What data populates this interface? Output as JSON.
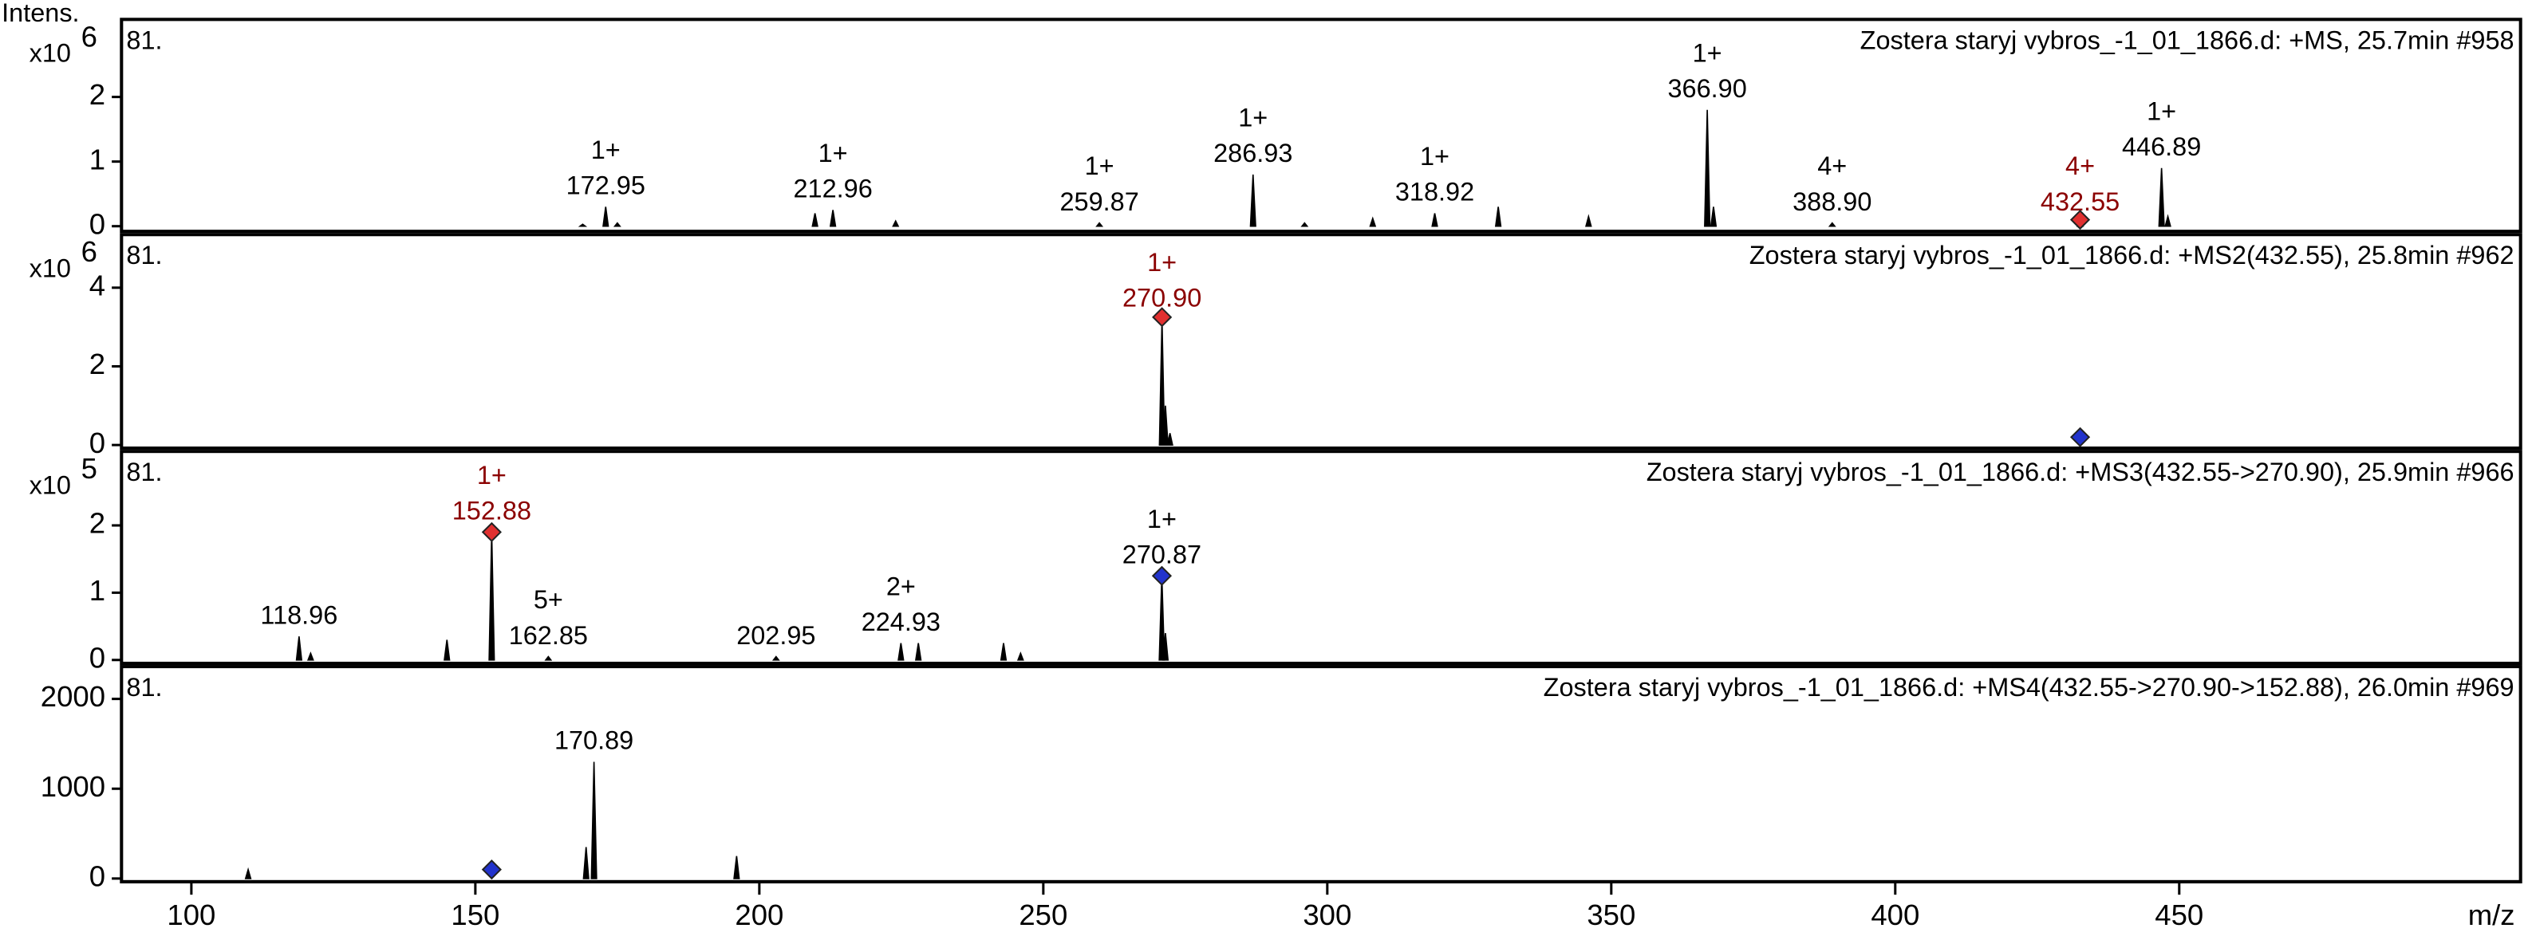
{
  "chart_data": [
    {
      "type": "bar",
      "title": "Zostera staryj vybros_-1_01_1866.d: +MS, 25.7min #958",
      "scan_label": "81.",
      "ylabel": "Intens.",
      "y_multiplier": "x10",
      "y_exponent": "6",
      "xlim": [
        87.7,
        510.1
      ],
      "ylim": [
        -0.08,
        3.2
      ],
      "yticks": [
        0,
        1,
        2
      ],
      "color": "#000000",
      "x": [
        172.95,
        212.96,
        259.87,
        286.93,
        318.92,
        366.9,
        388.9,
        432.55,
        446.89,
        168.9,
        175.0,
        209.8,
        224.0,
        296.0,
        308.0,
        330.1,
        346.0,
        368.0,
        448.0
      ],
      "values": [
        0.3,
        0.25,
        0.05,
        0.8,
        0.2,
        1.8,
        0.05,
        0.05,
        0.9,
        0.03,
        0.05,
        0.2,
        0.08,
        0.05,
        0.12,
        0.3,
        0.15,
        0.3,
        0.15
      ],
      "charges": [
        "1+",
        "1+",
        "1+",
        "1+",
        "1+",
        "1+",
        "4+",
        "4+",
        "1+",
        null,
        null,
        null,
        null,
        null,
        null,
        null,
        null,
        null,
        null
      ],
      "x_labels": [
        "172.95",
        "212.96",
        "259.87",
        "286.93",
        "318.92",
        "366.90",
        "388.90",
        "432.55",
        "446.89",
        null,
        null,
        null,
        null,
        null,
        null,
        null,
        null,
        null,
        null
      ],
      "label_colors": [
        "#000000",
        "#000000",
        "#000000",
        "#000000",
        "#000000",
        "#000000",
        "#000000",
        "#8b0000",
        "#000000",
        null,
        null,
        null,
        null,
        null,
        null,
        null,
        null,
        null,
        null
      ],
      "markers": [
        {
          "x": 432.55,
          "y": 0.1,
          "color": "#e03030"
        }
      ]
    },
    {
      "type": "bar",
      "title": "Zostera staryj vybros_-1_01_1866.d: +MS2(432.55), 25.8min #962",
      "scan_label": "81.",
      "y_multiplier": "x10",
      "y_exponent": "6",
      "xlim": [
        87.7,
        510.1
      ],
      "ylim": [
        -0.08,
        5.35
      ],
      "yticks": [
        0,
        2,
        4
      ],
      "color": "#000000",
      "x": [
        270.9,
        271.5,
        272.3
      ],
      "values": [
        3.2,
        1.0,
        0.3
      ],
      "charges": [
        "1+",
        null,
        null
      ],
      "x_labels": [
        "270.90",
        null,
        null
      ],
      "label_colors": [
        "#8b0000",
        null,
        null
      ],
      "markers": [
        {
          "x": 270.9,
          "y": 3.25,
          "color": "#e03030"
        },
        {
          "x": 432.55,
          "y": 0.2,
          "color": "#2233cc"
        }
      ]
    },
    {
      "type": "bar",
      "title": "Zostera staryj vybros_-1_01_1866.d: +MS3(432.55->270.90), 25.9min #966",
      "scan_label": "81.",
      "y_multiplier": "x10",
      "y_exponent": "5",
      "xlim": [
        87.7,
        510.1
      ],
      "ylim": [
        -0.05,
        3.1
      ],
      "yticks": [
        0,
        1,
        2
      ],
      "color": "#000000",
      "x": [
        118.96,
        152.88,
        162.85,
        202.95,
        224.93,
        270.87,
        121.0,
        145.0,
        228.0,
        243.0,
        246.0,
        271.5
      ],
      "values": [
        0.35,
        1.9,
        0.05,
        0.05,
        0.25,
        1.25,
        0.1,
        0.3,
        0.25,
        0.25,
        0.1,
        0.4
      ],
      "charges": [
        null,
        "1+",
        "5+",
        null,
        "2+",
        "1+",
        null,
        null,
        null,
        null,
        null,
        null
      ],
      "x_labels": [
        "118.96",
        "152.88",
        "162.85",
        "202.95",
        "224.93",
        "270.87",
        null,
        null,
        null,
        null,
        null,
        null
      ],
      "label_colors": [
        "#000000",
        "#8b0000",
        "#000000",
        "#000000",
        "#000000",
        "#000000",
        null,
        null,
        null,
        null,
        null,
        null
      ],
      "markers": [
        {
          "x": 152.88,
          "y": 1.9,
          "color": "#e03030"
        },
        {
          "x": 270.87,
          "y": 1.25,
          "color": "#2233cc"
        }
      ]
    },
    {
      "type": "bar",
      "title": "Zostera staryj vybros_-1_01_1866.d: +MS4(432.55->270.90->152.88), 26.0min #969",
      "scan_label": "81.",
      "xlabel": "m/z",
      "xlim": [
        87.7,
        510.1
      ],
      "xticks": [
        100,
        150,
        200,
        250,
        300,
        350,
        400,
        450
      ],
      "ylim": [
        -36,
        2360
      ],
      "yticks": [
        0,
        1000,
        2000
      ],
      "color": "#000000",
      "x": [
        170.89,
        110.0,
        169.5,
        196.0
      ],
      "values": [
        1300,
        100,
        350,
        250
      ],
      "charges": [
        null,
        null,
        null,
        null
      ],
      "x_labels": [
        "170.89",
        null,
        null,
        null
      ],
      "label_colors": [
        "#000000",
        null,
        null,
        null
      ],
      "markers": [
        {
          "x": 152.88,
          "y": 100,
          "color": "#2233cc"
        }
      ]
    }
  ]
}
